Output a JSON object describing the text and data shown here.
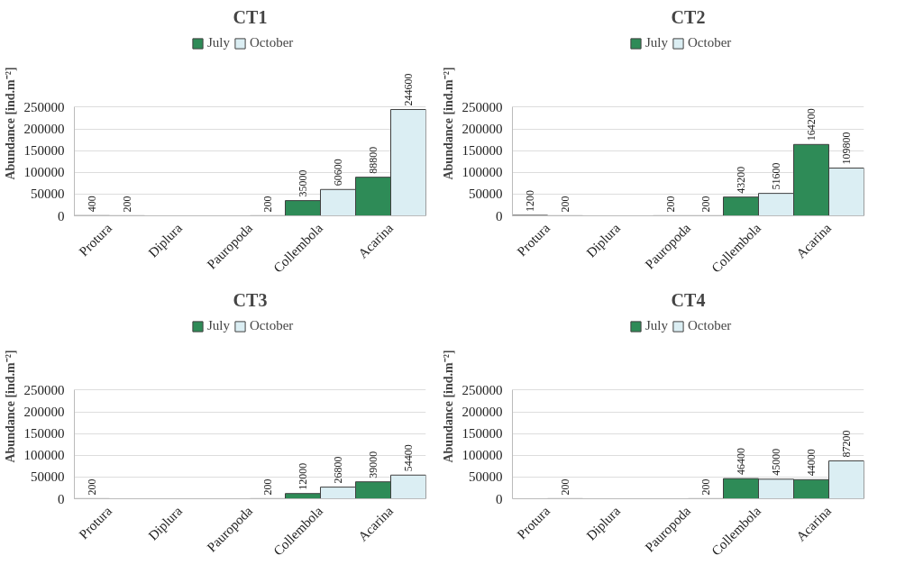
{
  "chart_data": [
    {
      "type": "bar",
      "title": "CT1",
      "ylabel": "Abundance [ind.m⁻²]",
      "categories": [
        "Protura",
        "Diplura",
        "Pauropoda",
        "Collembola",
        "Acarina"
      ],
      "ylim": [
        0,
        250000
      ],
      "yticks": [
        0,
        50000,
        100000,
        150000,
        200000,
        250000
      ],
      "grid": "y",
      "legend": "top",
      "data_labels": true,
      "series": [
        {
          "name": "July",
          "color": "#2e8b57",
          "values": [
            400,
            null,
            null,
            35000,
            88800
          ]
        },
        {
          "name": "October",
          "color": "#dbeef3",
          "values": [
            200,
            null,
            200,
            60600,
            244600
          ]
        }
      ]
    },
    {
      "type": "bar",
      "title": "CT2",
      "ylabel": "Abundance [ind.m⁻²]",
      "categories": [
        "Protura",
        "Diplura",
        "Pauropoda",
        "Collembola",
        "Acarina"
      ],
      "ylim": [
        0,
        250000
      ],
      "yticks": [
        0,
        50000,
        100000,
        150000,
        200000,
        250000
      ],
      "grid": "y",
      "legend": "top",
      "data_labels": true,
      "series": [
        {
          "name": "July",
          "color": "#2e8b57",
          "values": [
            1200,
            null,
            200,
            43200,
            164200
          ]
        },
        {
          "name": "October",
          "color": "#dbeef3",
          "values": [
            200,
            null,
            200,
            51600,
            109800
          ]
        }
      ]
    },
    {
      "type": "bar",
      "title": "CT3",
      "ylabel": "Abundance [ind.m⁻²]",
      "categories": [
        "Protura",
        "Diplura",
        "Pauropoda",
        "Collembola",
        "Acarina"
      ],
      "ylim": [
        0,
        250000
      ],
      "yticks": [
        0,
        50000,
        100000,
        150000,
        200000,
        250000
      ],
      "grid": "y",
      "legend": "top",
      "data_labels": true,
      "series": [
        {
          "name": "July",
          "color": "#2e8b57",
          "values": [
            200,
            null,
            null,
            12000,
            39000
          ]
        },
        {
          "name": "October",
          "color": "#dbeef3",
          "values": [
            null,
            null,
            200,
            26800,
            54400
          ]
        }
      ]
    },
    {
      "type": "bar",
      "title": "CT4",
      "ylabel": "Abundance [ind.m⁻²]",
      "categories": [
        "Protura",
        "Diplura",
        "Pauropoda",
        "Collembola",
        "Acarina"
      ],
      "ylim": [
        0,
        250000
      ],
      "yticks": [
        0,
        50000,
        100000,
        150000,
        200000,
        250000
      ],
      "grid": "y",
      "legend": "top",
      "data_labels": true,
      "series": [
        {
          "name": "July",
          "color": "#2e8b57",
          "values": [
            null,
            null,
            null,
            46400,
            44000
          ]
        },
        {
          "name": "October",
          "color": "#dbeef3",
          "values": [
            200,
            null,
            200,
            45000,
            87200
          ]
        }
      ]
    }
  ]
}
